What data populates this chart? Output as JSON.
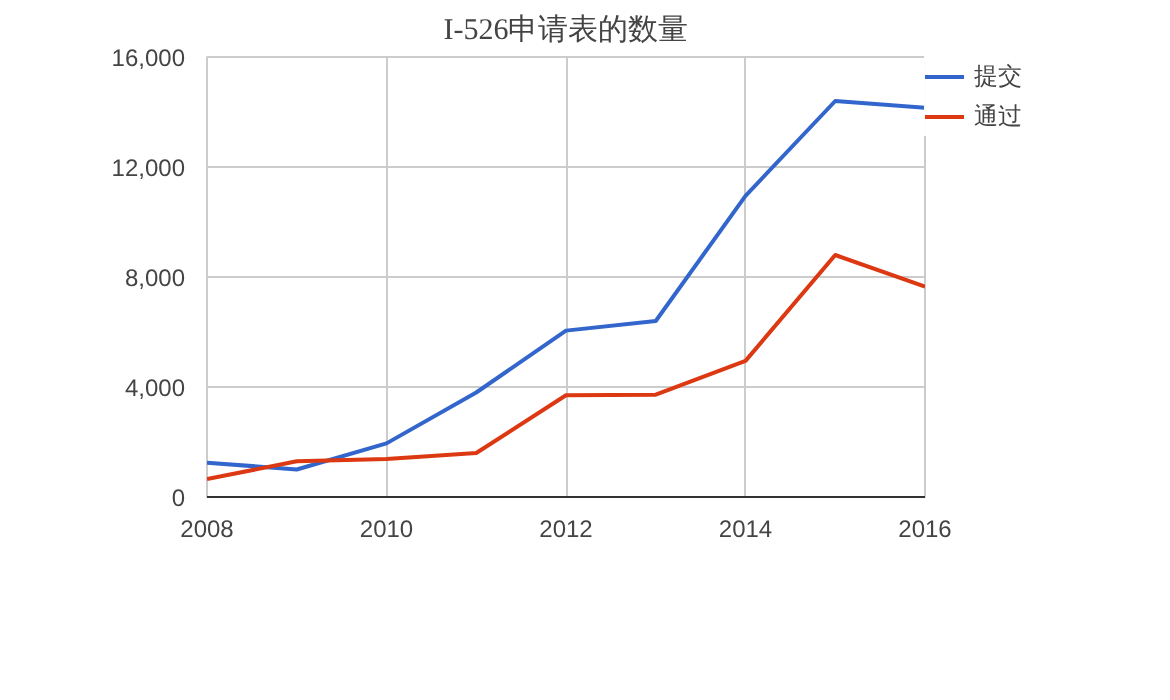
{
  "chart_data": {
    "type": "line",
    "title": "I-526申请表的数量",
    "x": [
      2008,
      2009,
      2010,
      2011,
      2012,
      2013,
      2014,
      2015,
      2016
    ],
    "series": [
      {
        "name": "提交",
        "color": "#3366cc",
        "values": [
          1250,
          1000,
          1950,
          3800,
          6050,
          6400,
          10950,
          14400,
          14150
        ]
      },
      {
        "name": "通过",
        "color": "#dc3912",
        "values": [
          650,
          1300,
          1380,
          1600,
          3700,
          3720,
          4950,
          8800,
          7650
        ]
      }
    ],
    "xlim": [
      2008,
      2016
    ],
    "xticks": [
      2008,
      2010,
      2012,
      2014,
      2016
    ],
    "ylim": [
      0,
      16000
    ],
    "yticks": [
      {
        "value": 0,
        "label": "0"
      },
      {
        "value": 4000,
        "label": "4,000"
      },
      {
        "value": 8000,
        "label": "8,000"
      },
      {
        "value": 12000,
        "label": "12,000"
      },
      {
        "value": 16000,
        "label": "16,000"
      }
    ],
    "grid": true,
    "legend": "top right",
    "marker": "none",
    "line_style": "solid"
  }
}
